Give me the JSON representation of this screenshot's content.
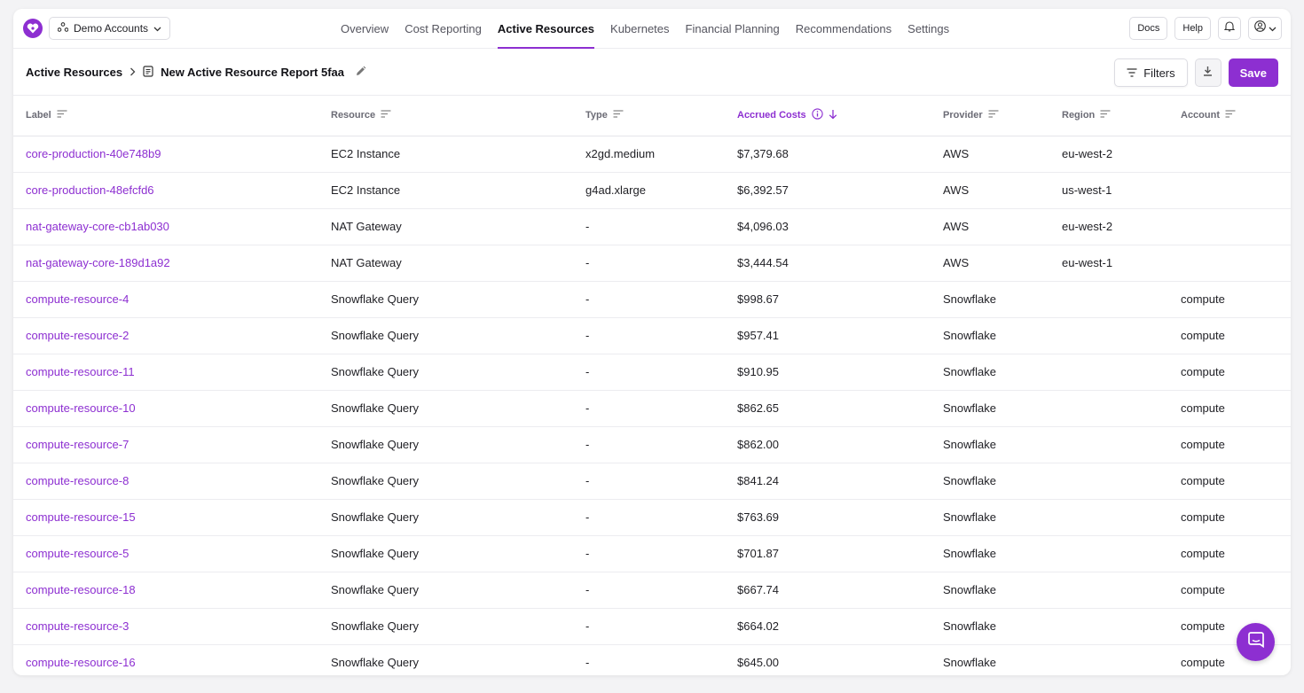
{
  "header": {
    "account_selector": "Demo Accounts",
    "nav_tabs": [
      {
        "label": "Overview",
        "active": false
      },
      {
        "label": "Cost Reporting",
        "active": false
      },
      {
        "label": "Active Resources",
        "active": true
      },
      {
        "label": "Kubernetes",
        "active": false
      },
      {
        "label": "Financial Planning",
        "active": false
      },
      {
        "label": "Recommendations",
        "active": false
      },
      {
        "label": "Settings",
        "active": false
      }
    ],
    "docs_label": "Docs",
    "help_label": "Help"
  },
  "breadcrumb": {
    "root": "Active Resources",
    "report_name": "New Active Resource Report 5faa"
  },
  "toolbar": {
    "filters_label": "Filters",
    "save_label": "Save"
  },
  "table": {
    "columns": [
      "Label",
      "Resource",
      "Type",
      "Accrued Costs",
      "Provider",
      "Region",
      "Account"
    ],
    "rows": [
      [
        "core-production-40e748b9",
        "EC2 Instance",
        "x2gd.medium",
        "$7,379.68",
        "AWS",
        "eu-west-2",
        ""
      ],
      [
        "core-production-48efcfd6",
        "EC2 Instance",
        "g4ad.xlarge",
        "$6,392.57",
        "AWS",
        "us-west-1",
        ""
      ],
      [
        "nat-gateway-core-cb1ab030",
        "NAT Gateway",
        "-",
        "$4,096.03",
        "AWS",
        "eu-west-2",
        ""
      ],
      [
        "nat-gateway-core-189d1a92",
        "NAT Gateway",
        "-",
        "$3,444.54",
        "AWS",
        "eu-west-1",
        ""
      ],
      [
        "compute-resource-4",
        "Snowflake Query",
        "-",
        "$998.67",
        "Snowflake",
        "",
        "compute"
      ],
      [
        "compute-resource-2",
        "Snowflake Query",
        "-",
        "$957.41",
        "Snowflake",
        "",
        "compute"
      ],
      [
        "compute-resource-11",
        "Snowflake Query",
        "-",
        "$910.95",
        "Snowflake",
        "",
        "compute"
      ],
      [
        "compute-resource-10",
        "Snowflake Query",
        "-",
        "$862.65",
        "Snowflake",
        "",
        "compute"
      ],
      [
        "compute-resource-7",
        "Snowflake Query",
        "-",
        "$862.00",
        "Snowflake",
        "",
        "compute"
      ],
      [
        "compute-resource-8",
        "Snowflake Query",
        "-",
        "$841.24",
        "Snowflake",
        "",
        "compute"
      ],
      [
        "compute-resource-15",
        "Snowflake Query",
        "-",
        "$763.69",
        "Snowflake",
        "",
        "compute"
      ],
      [
        "compute-resource-5",
        "Snowflake Query",
        "-",
        "$701.87",
        "Snowflake",
        "",
        "compute"
      ],
      [
        "compute-resource-18",
        "Snowflake Query",
        "-",
        "$667.74",
        "Snowflake",
        "",
        "compute"
      ],
      [
        "compute-resource-3",
        "Snowflake Query",
        "-",
        "$664.02",
        "Snowflake",
        "",
        "compute"
      ],
      [
        "compute-resource-16",
        "Snowflake Query",
        "-",
        "$645.00",
        "Snowflake",
        "",
        "compute"
      ]
    ]
  },
  "colors": {
    "accent": "#8d2fd1"
  }
}
